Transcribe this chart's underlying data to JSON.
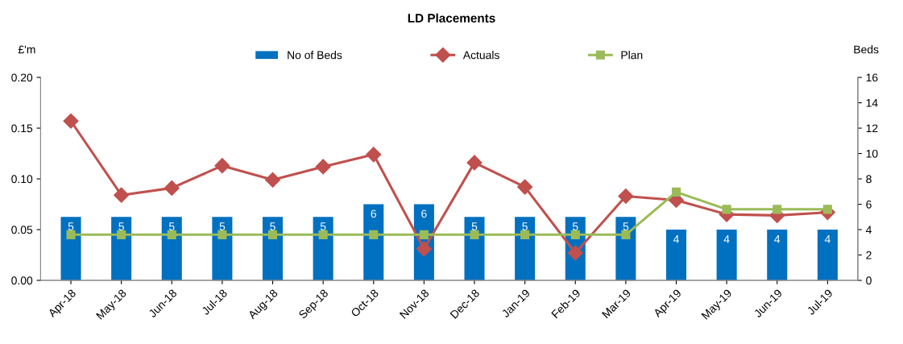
{
  "chart_data": {
    "type": "bar",
    "title": "LD Placements",
    "ylabel": "£'m",
    "y2label": "Beds",
    "categories": [
      "Apr-18",
      "May-18",
      "Jun-18",
      "Jul-18",
      "Aug-18",
      "Sep-18",
      "Oct-18",
      "Nov-18",
      "Dec-18",
      "Jan-19",
      "Feb-19",
      "Mar-19",
      "Apr-19",
      "May-19",
      "Jun-19",
      "Jul-19"
    ],
    "series": [
      {
        "name": "No of Beds",
        "axis": "y2",
        "color": "#0070c0",
        "values": [
          5,
          5,
          5,
          5,
          5,
          5,
          6,
          6,
          5,
          5,
          5,
          5,
          4,
          4,
          4,
          4
        ],
        "value_labels": [
          "5",
          "5",
          "5",
          "5",
          "5",
          "5",
          "6",
          "6",
          "5",
          "5",
          "5",
          "5",
          "4",
          "4",
          "4",
          "4"
        ]
      },
      {
        "name": "Actuals",
        "type": "line",
        "marker": "diamond",
        "color": "#c0504d",
        "values": [
          0.157,
          0.084,
          0.091,
          0.113,
          0.099,
          0.112,
          0.124,
          0.031,
          0.116,
          0.092,
          0.027,
          0.083,
          0.079,
          0.065,
          0.064,
          0.067
        ]
      },
      {
        "name": "Plan",
        "type": "line",
        "marker": "square",
        "color": "#9bbb59",
        "values": [
          0.045,
          0.045,
          0.045,
          0.045,
          0.045,
          0.045,
          0.045,
          0.045,
          0.045,
          0.045,
          0.045,
          0.045,
          0.087,
          0.07,
          0.07,
          0.07
        ]
      }
    ],
    "ylim": [
      0,
      0.2
    ],
    "yticks": [
      {
        "value": 0,
        "label": "0.00"
      },
      {
        "value": 0.05,
        "label": "0.05"
      },
      {
        "value": 0.1,
        "label": "0.10"
      },
      {
        "value": 0.15,
        "label": "0.15"
      },
      {
        "value": 0.2,
        "label": "0.20"
      }
    ],
    "y2lim": [
      0,
      16
    ],
    "y2ticks": [
      0,
      2,
      4,
      6,
      8,
      10,
      12,
      14,
      16
    ],
    "grid": false,
    "legend": "top"
  }
}
